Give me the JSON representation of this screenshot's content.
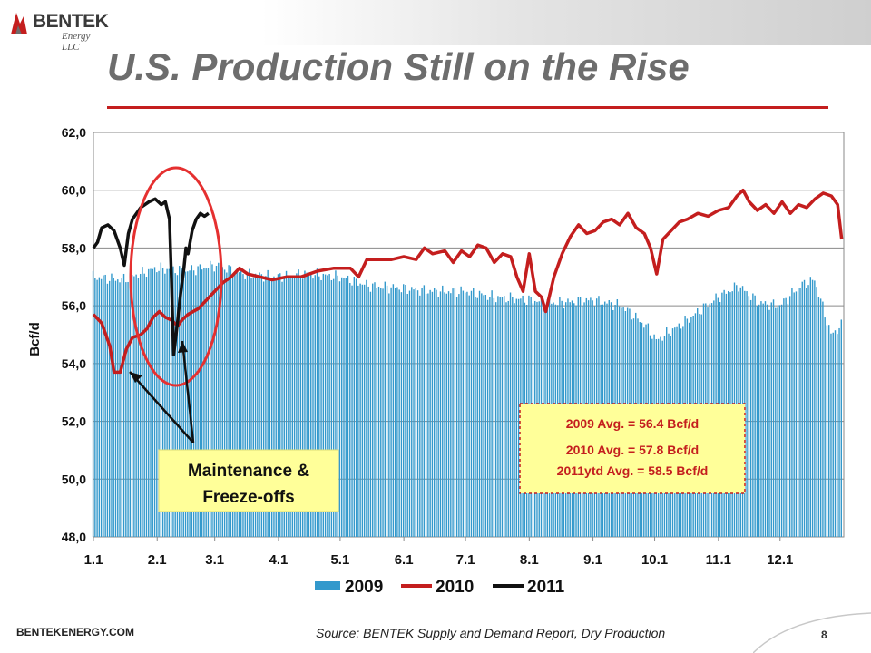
{
  "logo": {
    "text": "BENTEK",
    "sub": "Energy LLC"
  },
  "page_title": "U.S. Production Still on the Rise",
  "footer": {
    "site": "BENTEKENERGY.COM",
    "source": "Source: BENTEK Supply and  Demand Report, Dry Production",
    "page_number": "8"
  },
  "colors": {
    "s2009": "#3399cc",
    "s2010": "#c41e1e",
    "s2011": "#111111",
    "title": "#6d6d6d",
    "accent": "#c41e1e",
    "callout_bg": "#ffff99"
  },
  "annotations": {
    "maintenance": [
      "Maintenance &",
      "Freeze-offs"
    ],
    "averages": [
      "2009 Avg. = 56.4 Bcf/d",
      "2010 Avg. = 57.8 Bcf/d",
      "2011ytd Avg. = 58.5 Bcf/d"
    ]
  },
  "chart_data": {
    "type": "bar+line",
    "ylabel": "Bcf/d",
    "xlabel": "",
    "ylim": [
      48,
      62
    ],
    "yticks": [
      "48,0",
      "50,0",
      "52,0",
      "54,0",
      "56,0",
      "58,0",
      "60,0",
      "62,0"
    ],
    "categories": [
      "1.1",
      "2.1",
      "3.1",
      "4.1",
      "5.1",
      "6.1",
      "7.1",
      "8.1",
      "9.1",
      "10.1",
      "11.1",
      "12.1"
    ],
    "x_unit": "day of year",
    "grid": true,
    "legend_position": "bottom",
    "legend": [
      "2009",
      "2010",
      "2011"
    ],
    "series": [
      {
        "name": "2009",
        "type": "bar",
        "points": [
          [
            1,
            57.0
          ],
          [
            15,
            56.9
          ],
          [
            32,
            57.3
          ],
          [
            46,
            57.2
          ],
          [
            60,
            57.4
          ],
          [
            75,
            57.1
          ],
          [
            91,
            57.0
          ],
          [
            105,
            57.1
          ],
          [
            121,
            57.0
          ],
          [
            135,
            56.7
          ],
          [
            152,
            56.6
          ],
          [
            166,
            56.5
          ],
          [
            182,
            56.5
          ],
          [
            196,
            56.3
          ],
          [
            213,
            56.2
          ],
          [
            227,
            56.1
          ],
          [
            244,
            56.2
          ],
          [
            258,
            56.0
          ],
          [
            270,
            55.3
          ],
          [
            275,
            54.8
          ],
          [
            288,
            55.4
          ],
          [
            305,
            56.3
          ],
          [
            315,
            56.7
          ],
          [
            325,
            56.1
          ],
          [
            335,
            56.0
          ],
          [
            345,
            56.7
          ],
          [
            352,
            56.9
          ],
          [
            360,
            55.0
          ],
          [
            365,
            55.3
          ]
        ]
      },
      {
        "name": "2010",
        "type": "line",
        "points": [
          [
            1,
            55.7
          ],
          [
            5,
            55.4
          ],
          [
            9,
            54.6
          ],
          [
            11,
            53.7
          ],
          [
            14,
            53.7
          ],
          [
            17,
            54.5
          ],
          [
            20,
            54.9
          ],
          [
            24,
            55.0
          ],
          [
            27,
            55.2
          ],
          [
            30,
            55.6
          ],
          [
            33,
            55.8
          ],
          [
            36,
            55.6
          ],
          [
            39,
            55.5
          ],
          [
            42,
            55.3
          ],
          [
            44,
            55.5
          ],
          [
            47,
            55.7
          ],
          [
            52,
            55.9
          ],
          [
            56,
            56.2
          ],
          [
            60,
            56.5
          ],
          [
            64,
            56.8
          ],
          [
            68,
            57.0
          ],
          [
            72,
            57.3
          ],
          [
            76,
            57.1
          ],
          [
            82,
            57.0
          ],
          [
            88,
            56.9
          ],
          [
            95,
            57.0
          ],
          [
            102,
            57.0
          ],
          [
            110,
            57.2
          ],
          [
            118,
            57.3
          ],
          [
            126,
            57.3
          ],
          [
            130,
            57.0
          ],
          [
            134,
            57.6
          ],
          [
            140,
            57.6
          ],
          [
            146,
            57.6
          ],
          [
            152,
            57.7
          ],
          [
            158,
            57.6
          ],
          [
            162,
            58.0
          ],
          [
            166,
            57.8
          ],
          [
            172,
            57.9
          ],
          [
            176,
            57.5
          ],
          [
            180,
            57.9
          ],
          [
            184,
            57.7
          ],
          [
            188,
            58.1
          ],
          [
            192,
            58.0
          ],
          [
            196,
            57.5
          ],
          [
            200,
            57.8
          ],
          [
            204,
            57.7
          ],
          [
            207,
            57.0
          ],
          [
            210,
            56.5
          ],
          [
            213,
            57.8
          ],
          [
            216,
            56.5
          ],
          [
            219,
            56.3
          ],
          [
            221,
            55.8
          ],
          [
            225,
            57.0
          ],
          [
            229,
            57.8
          ],
          [
            233,
            58.4
          ],
          [
            237,
            58.8
          ],
          [
            241,
            58.5
          ],
          [
            245,
            58.6
          ],
          [
            249,
            58.9
          ],
          [
            253,
            59.0
          ],
          [
            257,
            58.8
          ],
          [
            261,
            59.2
          ],
          [
            265,
            58.7
          ],
          [
            269,
            58.5
          ],
          [
            272,
            58.0
          ],
          [
            275,
            57.1
          ],
          [
            278,
            58.3
          ],
          [
            282,
            58.6
          ],
          [
            286,
            58.9
          ],
          [
            290,
            59.0
          ],
          [
            295,
            59.2
          ],
          [
            300,
            59.1
          ],
          [
            305,
            59.3
          ],
          [
            310,
            59.4
          ],
          [
            314,
            59.8
          ],
          [
            317,
            60.0
          ],
          [
            320,
            59.6
          ],
          [
            324,
            59.3
          ],
          [
            328,
            59.5
          ],
          [
            332,
            59.2
          ],
          [
            336,
            59.6
          ],
          [
            340,
            59.2
          ],
          [
            344,
            59.5
          ],
          [
            348,
            59.4
          ],
          [
            352,
            59.7
          ],
          [
            356,
            59.9
          ],
          [
            360,
            59.8
          ],
          [
            363,
            59.5
          ],
          [
            365,
            58.3
          ]
        ]
      },
      {
        "name": "2011",
        "type": "line",
        "points": [
          [
            1,
            58.0
          ],
          [
            3,
            58.2
          ],
          [
            5,
            58.7
          ],
          [
            8,
            58.8
          ],
          [
            11,
            58.6
          ],
          [
            14,
            58.0
          ],
          [
            16,
            57.4
          ],
          [
            18,
            58.5
          ],
          [
            20,
            59.0
          ],
          [
            24,
            59.4
          ],
          [
            28,
            59.6
          ],
          [
            31,
            59.7
          ],
          [
            34,
            59.5
          ],
          [
            36,
            59.6
          ],
          [
            38,
            59.0
          ],
          [
            39,
            56.8
          ],
          [
            40,
            54.3
          ],
          [
            42,
            55.5
          ],
          [
            43,
            56.2
          ],
          [
            45,
            57.3
          ],
          [
            46,
            58.0
          ],
          [
            47,
            57.8
          ],
          [
            49,
            58.6
          ],
          [
            51,
            59.0
          ],
          [
            53,
            59.2
          ],
          [
            55,
            59.1
          ],
          [
            57,
            59.2
          ]
        ]
      }
    ],
    "averages": [
      {
        "label": "2009",
        "value": 56.4
      },
      {
        "label": "2010",
        "value": 57.8
      },
      {
        "label": "2011ytd",
        "value": 58.5
      }
    ]
  }
}
